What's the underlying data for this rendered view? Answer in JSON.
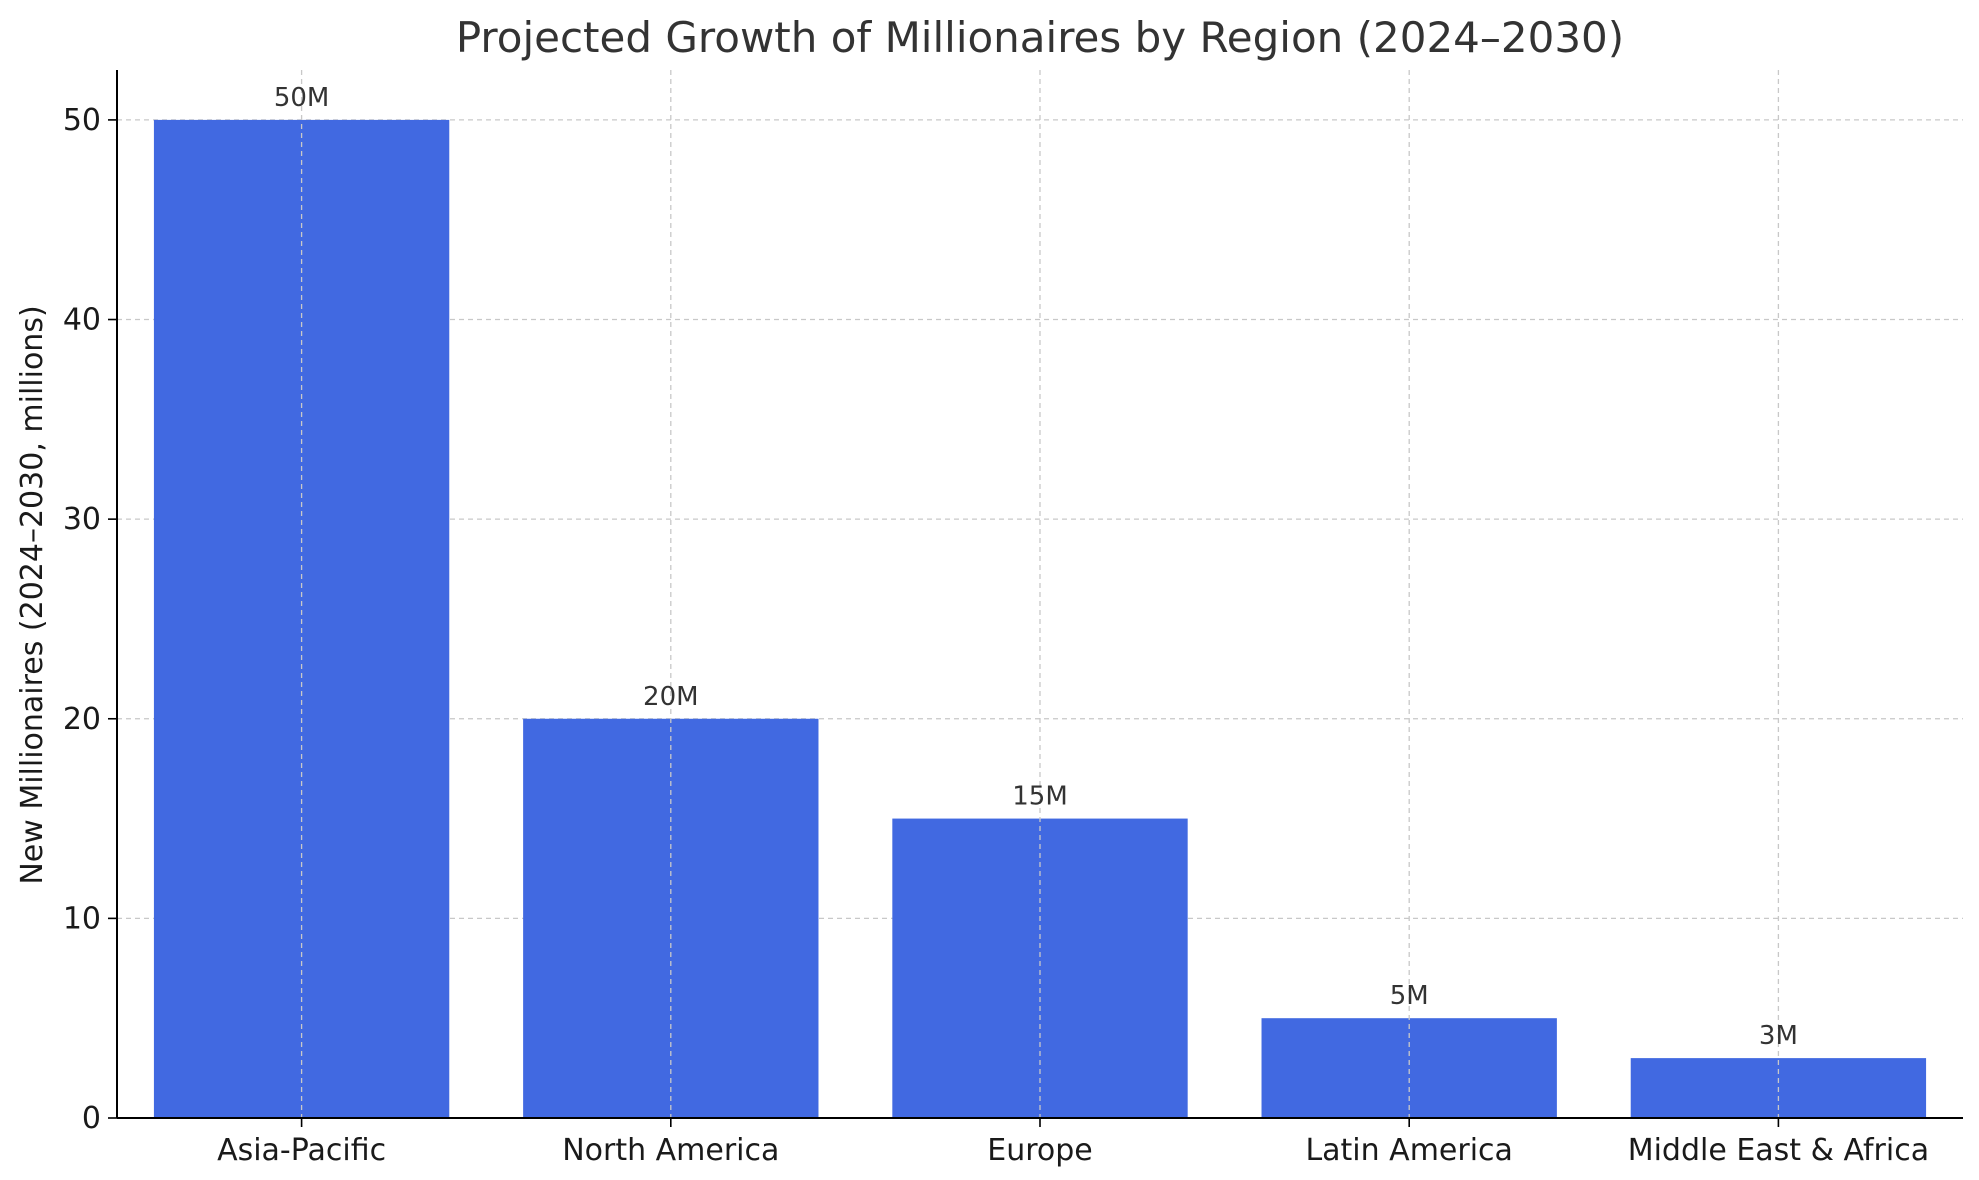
{
  "chart_data": {
    "type": "bar",
    "title": "Projected Growth of Millionaires by Region (2024–2030)",
    "xlabel": "",
    "ylabel": "New Millionaires (2024–2030, millions)",
    "categories": [
      "Asia-Pacific",
      "North America",
      "Europe",
      "Latin America",
      "Middle East & Africa"
    ],
    "values": [
      50,
      20,
      15,
      5,
      3
    ],
    "data_labels": [
      "50M",
      "20M",
      "15M",
      "5M",
      "3M"
    ],
    "yticks": [
      0,
      10,
      20,
      30,
      40,
      50
    ],
    "ylim": [
      0,
      52.5
    ],
    "grid": true,
    "bar_color": "#4169E1"
  }
}
